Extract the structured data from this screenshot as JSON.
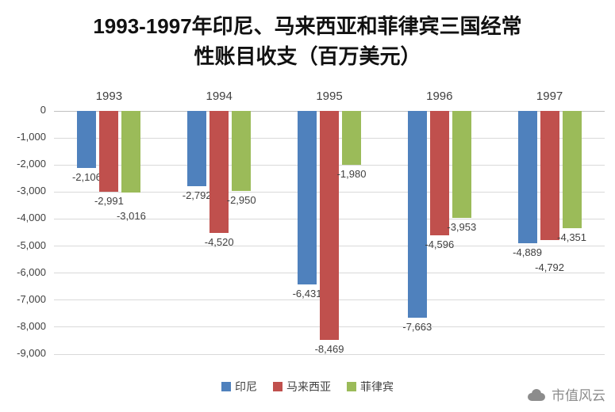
{
  "chart_data": {
    "type": "bar",
    "title": "1993-1997年印尼、马来西亚和菲律宾三国经常性账目收支（百万美元）",
    "title_lines": [
      "1993-1997年印尼、马来西亚和菲律宾三国经常",
      "性账目收支（百万美元）"
    ],
    "categories": [
      "1993",
      "1994",
      "1995",
      "1996",
      "1997"
    ],
    "series": [
      {
        "key": "indonesia",
        "name": "印尼",
        "color": "#4F81BD",
        "values": [
          -2106,
          -2792,
          -6431,
          -7663,
          -4889
        ],
        "labels": [
          "-2,106",
          "-2,792",
          "-6,431",
          "-7,663",
          "-4,889"
        ]
      },
      {
        "key": "malaysia",
        "name": "马来西亚",
        "color": "#C0504D",
        "values": [
          -2991,
          -4520,
          -8469,
          -4596,
          -4792
        ],
        "labels": [
          "-2,991",
          "-4,520",
          "-8,469",
          "-4,596",
          "-4,792"
        ]
      },
      {
        "key": "philippines",
        "name": "菲律宾",
        "color": "#9BBB59",
        "values": [
          -3016,
          -2950,
          -1980,
          -3953,
          -4351
        ],
        "labels": [
          "-3,016",
          "-2,950",
          "-1,980",
          "-3,953",
          "-4,351"
        ]
      }
    ],
    "ylim": [
      -9000,
      0
    ],
    "ytick_step": 1000,
    "ytick_labels": [
      "0",
      "-1,000",
      "-2,000",
      "-3,000",
      "-4,000",
      "-5,000",
      "-6,000",
      "-7,000",
      "-8,000",
      "-9,000"
    ],
    "grid": true,
    "legend_position": "bottom",
    "data_labels": true
  },
  "watermark": {
    "text": "市值风云"
  }
}
